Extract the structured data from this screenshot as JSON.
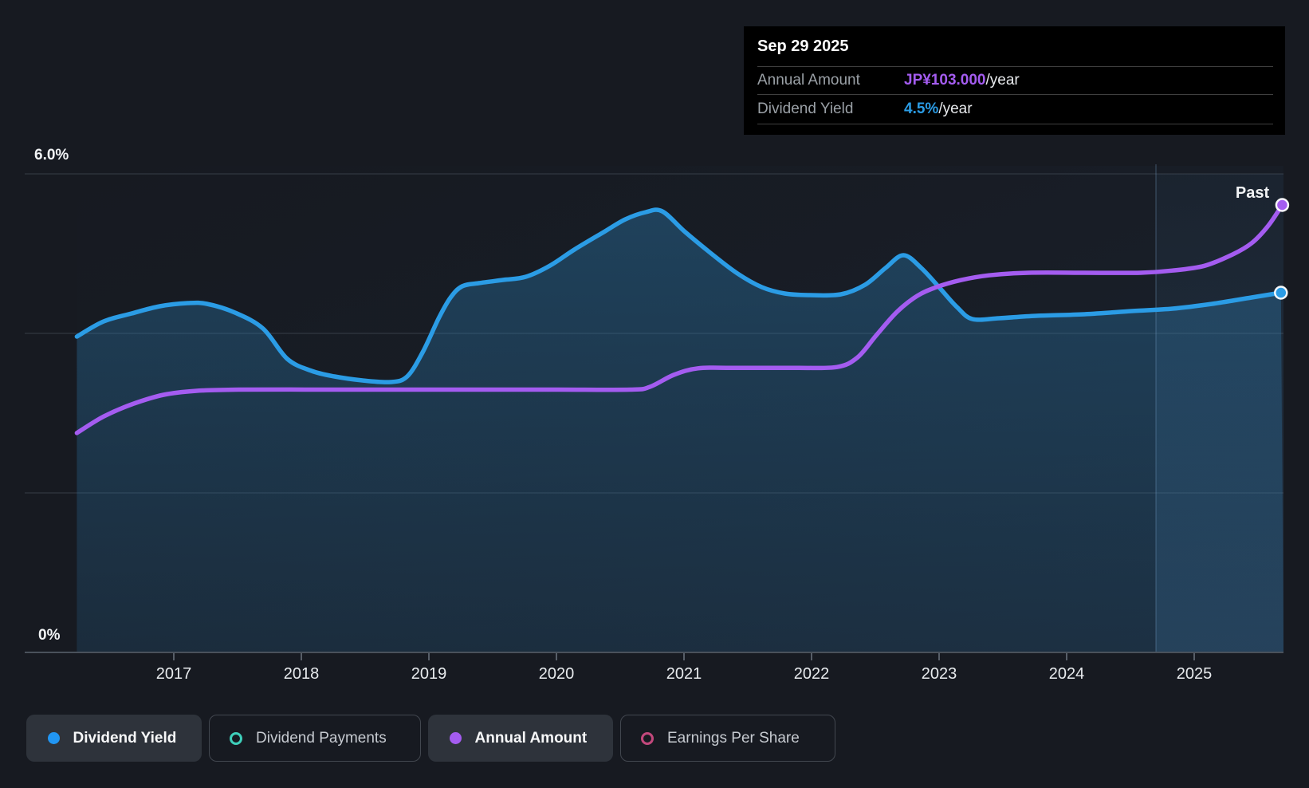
{
  "tooltip": {
    "date": "Sep 29 2025",
    "rows": [
      {
        "label": "Annual Amount",
        "value": "JP¥103.000",
        "suffix": "/year",
        "color": "#a45cf0"
      },
      {
        "label": "Dividend Yield",
        "value": "4.5%",
        "suffix": "/year",
        "color": "#2b9ce5"
      }
    ]
  },
  "labels": {
    "past": "Past",
    "y_top": "6.0%",
    "y_bottom": "0%"
  },
  "legend": [
    {
      "label": "Dividend Yield",
      "marker": "dot",
      "color": "#2196f3",
      "active": true
    },
    {
      "label": "Dividend Payments",
      "marker": "ring",
      "color": "#3ecfba",
      "active": false
    },
    {
      "label": "Annual Amount",
      "marker": "dot",
      "color": "#a45cf0",
      "active": true
    },
    {
      "label": "Earnings Per Share",
      "marker": "ring",
      "color": "#c2487c",
      "active": false
    }
  ],
  "chart_data": {
    "type": "area",
    "title": "Dividend history",
    "x_ticks": [
      2017,
      2018,
      2019,
      2020,
      2021,
      2022,
      2023,
      2024,
      2025
    ],
    "x_range": [
      2016.24,
      2025.7
    ],
    "yield_axis": {
      "min": 0,
      "max": 6.1,
      "gridlines_pct": [
        6,
        4,
        2
      ],
      "top_label": "6.0%",
      "bottom_label": "0%",
      "unit": "%"
    },
    "amount_axis": {
      "min": 0,
      "max": 112,
      "unit": "JP¥/year"
    },
    "divider_year": 2024.7,
    "grid": true,
    "legend_position": "bottom",
    "series": [
      {
        "name": "Dividend Yield",
        "unit": "%",
        "color": "#2b9ce5",
        "area": true,
        "end_value": 4.5,
        "points": [
          [
            2016.24,
            3.96
          ],
          [
            2016.45,
            4.15
          ],
          [
            2016.67,
            4.25
          ],
          [
            2016.89,
            4.34
          ],
          [
            2017.11,
            4.38
          ],
          [
            2017.26,
            4.37
          ],
          [
            2017.48,
            4.26
          ],
          [
            2017.7,
            4.06
          ],
          [
            2017.89,
            3.68
          ],
          [
            2018.08,
            3.53
          ],
          [
            2018.26,
            3.46
          ],
          [
            2018.48,
            3.41
          ],
          [
            2018.7,
            3.39
          ],
          [
            2018.83,
            3.46
          ],
          [
            2018.95,
            3.76
          ],
          [
            2019.08,
            4.2
          ],
          [
            2019.17,
            4.45
          ],
          [
            2019.26,
            4.59
          ],
          [
            2019.39,
            4.63
          ],
          [
            2019.58,
            4.67
          ],
          [
            2019.76,
            4.71
          ],
          [
            2019.95,
            4.85
          ],
          [
            2020.14,
            5.05
          ],
          [
            2020.36,
            5.26
          ],
          [
            2020.54,
            5.43
          ],
          [
            2020.7,
            5.52
          ],
          [
            2020.83,
            5.53
          ],
          [
            2021.01,
            5.27
          ],
          [
            2021.23,
            4.98
          ],
          [
            2021.42,
            4.75
          ],
          [
            2021.61,
            4.58
          ],
          [
            2021.79,
            4.5
          ],
          [
            2021.98,
            4.48
          ],
          [
            2022.23,
            4.49
          ],
          [
            2022.42,
            4.61
          ],
          [
            2022.58,
            4.82
          ],
          [
            2022.72,
            4.98
          ],
          [
            2022.86,
            4.82
          ],
          [
            2023.01,
            4.56
          ],
          [
            2023.14,
            4.33
          ],
          [
            2023.26,
            4.18
          ],
          [
            2023.47,
            4.19
          ],
          [
            2023.76,
            4.22
          ],
          [
            2024.14,
            4.24
          ],
          [
            2024.51,
            4.28
          ],
          [
            2024.83,
            4.31
          ],
          [
            2025.14,
            4.37
          ],
          [
            2025.45,
            4.45
          ],
          [
            2025.68,
            4.51
          ]
        ]
      },
      {
        "name": "Annual Amount",
        "unit": "JP¥/year",
        "color": "#a45cf0",
        "area": false,
        "end_value": 103.0,
        "points": [
          [
            2016.24,
            50.5
          ],
          [
            2016.45,
            54.3
          ],
          [
            2016.67,
            57.1
          ],
          [
            2016.92,
            59.3
          ],
          [
            2017.17,
            60.2
          ],
          [
            2017.51,
            60.5
          ],
          [
            2018.14,
            60.5
          ],
          [
            2018.76,
            60.5
          ],
          [
            2019.39,
            60.5
          ],
          [
            2020.01,
            60.5
          ],
          [
            2020.58,
            60.5
          ],
          [
            2020.73,
            61.1
          ],
          [
            2020.92,
            63.9
          ],
          [
            2021.11,
            65.4
          ],
          [
            2021.39,
            65.5
          ],
          [
            2021.89,
            65.5
          ],
          [
            2022.2,
            65.7
          ],
          [
            2022.36,
            67.9
          ],
          [
            2022.51,
            73.1
          ],
          [
            2022.67,
            78.4
          ],
          [
            2022.83,
            82.1
          ],
          [
            2022.98,
            84.1
          ],
          [
            2023.17,
            85.7
          ],
          [
            2023.39,
            86.8
          ],
          [
            2023.7,
            87.4
          ],
          [
            2024.14,
            87.4
          ],
          [
            2024.58,
            87.4
          ],
          [
            2024.83,
            87.9
          ],
          [
            2025.08,
            89.0
          ],
          [
            2025.3,
            91.6
          ],
          [
            2025.45,
            94.2
          ],
          [
            2025.58,
            98.2
          ],
          [
            2025.69,
            103.0
          ]
        ]
      }
    ]
  }
}
